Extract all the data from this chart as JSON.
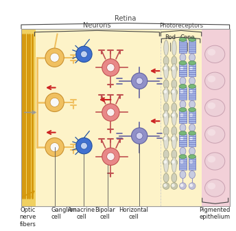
{
  "bg_yellow": "#fdf3c8",
  "bg_yellow_left": "#f5e070",
  "bg_pink": "#f2d0d8",
  "fiber_color": "#d4960a",
  "ganglion_fill": "#f0c060",
  "ganglion_edge": "#c89030",
  "amacrine_fill": "#4070d0",
  "amacrine_edge": "#2050a0",
  "bipolar_fill": "#e88888",
  "bipolar_edge": "#c05050",
  "horizontal_fill": "#9090c8",
  "horizontal_edge": "#6060a0",
  "rod_outer_fill": "#e0e0c0",
  "rod_inner_fill": "#d0d0b0",
  "cone_fill": "#a8b8e8",
  "cone_tip": "#78b878",
  "arrow_red": "#cc2222",
  "label_color": "#222222",
  "bracket_color": "#555555",
  "retina_label": "Retina",
  "neurons_label": "Neurons",
  "photoreceptors_label": "Photoreceptors",
  "rod_label": "Rod",
  "cone_label": "Cone",
  "optic_label": "Optic\nnerve\nfibers",
  "ganglion_label": "Ganglion\ncell",
  "amacrine_label": "Amacrine\ncell",
  "bipolar_label": "Bipolar\ncell",
  "horizontal_label": "Horizontal\ncell",
  "pigmented_label": "Pigmented\nepithelium",
  "lfs": 6.0,
  "bfs": 7.0
}
